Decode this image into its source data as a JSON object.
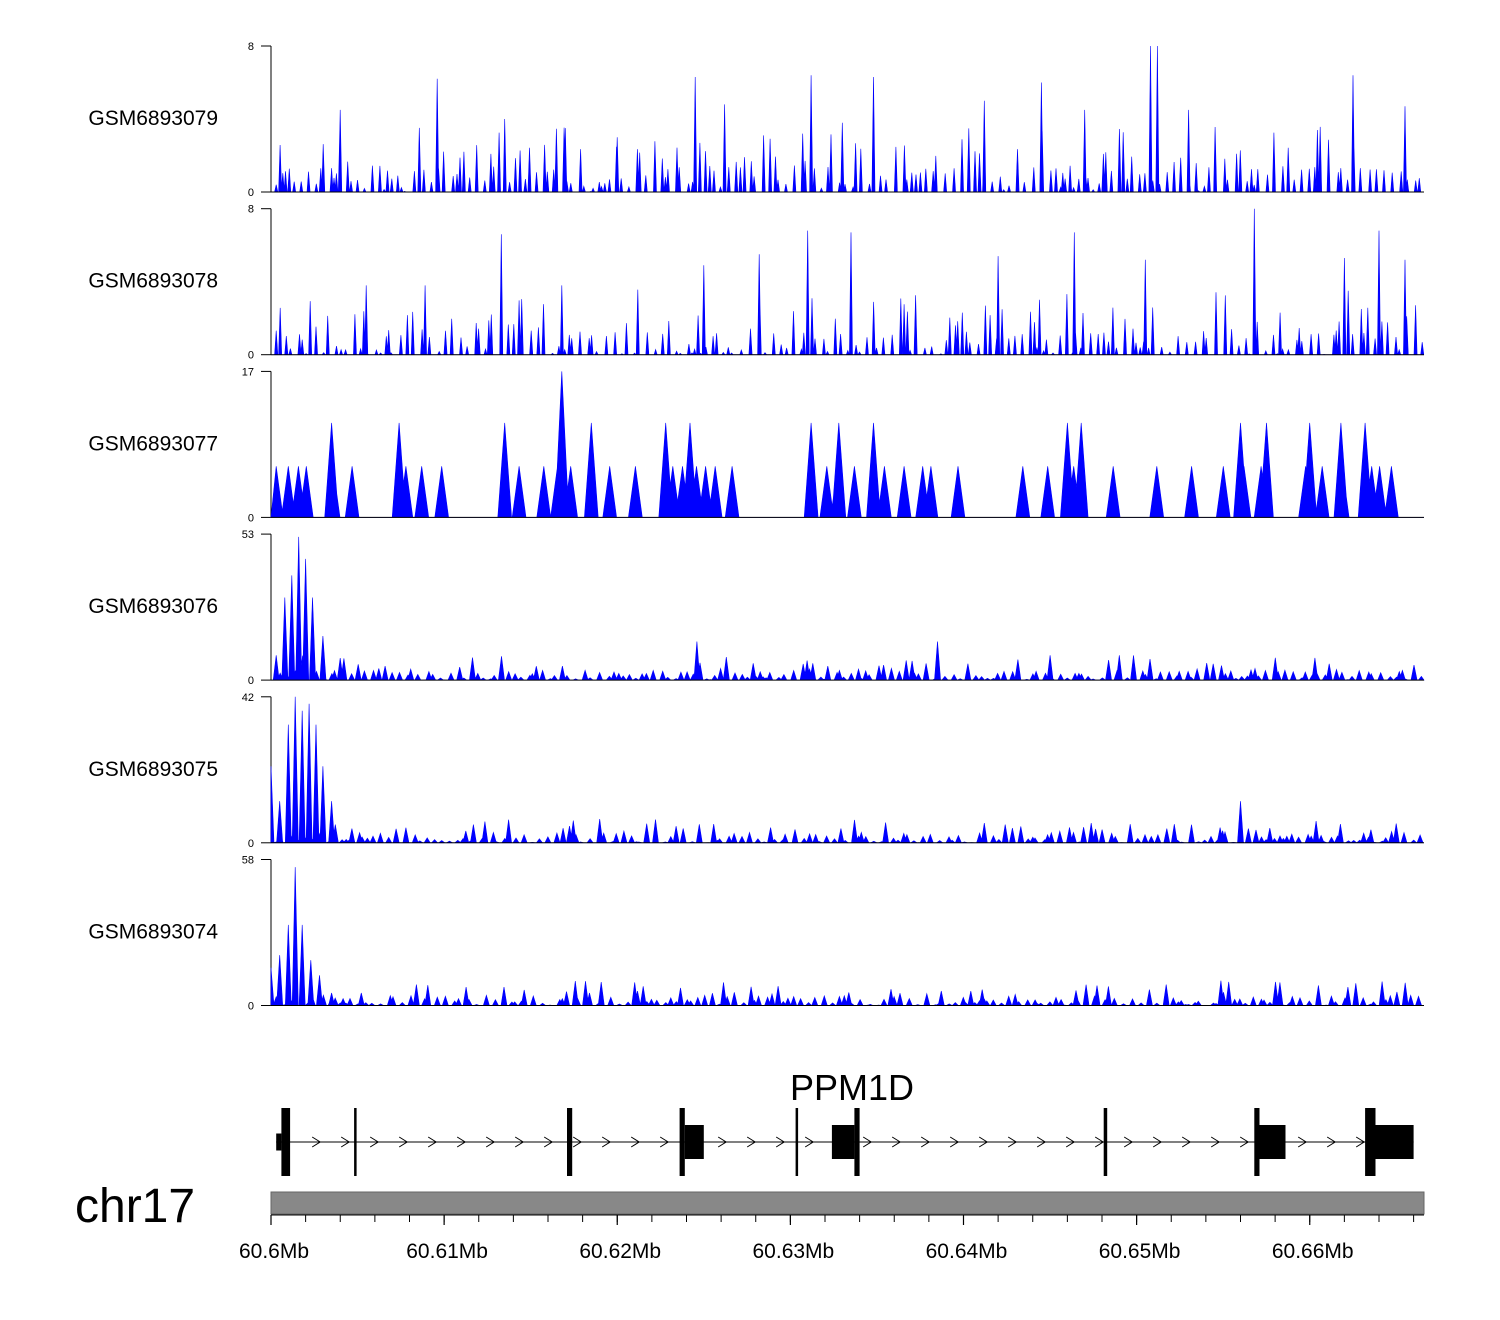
{
  "chart_data": {
    "type": "area",
    "tracks": [
      {
        "name": "GSM6893079",
        "ymax": 8,
        "ymin": 0,
        "color": "#0000ff",
        "seed": 11,
        "peaks": [
          [
            60.604,
            4.5
          ],
          [
            60.6096,
            6.2
          ],
          [
            60.6135,
            4.0
          ],
          [
            60.617,
            3.5
          ],
          [
            60.62,
            3.0
          ],
          [
            60.6245,
            6.3
          ],
          [
            60.6262,
            4.8
          ],
          [
            60.6312,
            6.4
          ],
          [
            60.633,
            3.8
          ],
          [
            60.6348,
            6.3
          ],
          [
            60.6412,
            5.0
          ],
          [
            60.6445,
            6.0
          ],
          [
            60.647,
            4.5
          ],
          [
            60.6508,
            8.0
          ],
          [
            60.6512,
            8.0
          ],
          [
            60.653,
            4.5
          ],
          [
            60.6625,
            6.4
          ],
          [
            60.6655,
            4.7
          ]
        ]
      },
      {
        "name": "GSM6893078",
        "ymax": 8,
        "ymin": 0,
        "color": "#0000ff",
        "seed": 23,
        "peaks": [
          [
            60.6055,
            3.8
          ],
          [
            60.6089,
            3.8
          ],
          [
            60.6133,
            6.6
          ],
          [
            60.6168,
            3.8
          ],
          [
            60.625,
            4.9
          ],
          [
            60.6282,
            5.5
          ],
          [
            60.631,
            6.8
          ],
          [
            60.6335,
            6.7
          ],
          [
            60.642,
            5.4
          ],
          [
            60.6464,
            6.7
          ],
          [
            60.6505,
            5.2
          ],
          [
            60.6568,
            8.0
          ],
          [
            60.662,
            5.3
          ],
          [
            60.664,
            6.8
          ],
          [
            60.6655,
            5.2
          ]
        ]
      },
      {
        "name": "GSM6893077",
        "ymax": 17,
        "ymin": 0,
        "color": "#0000ff",
        "seed": 37,
        "peaks": [
          [
            60.6035,
            11.0
          ],
          [
            60.6074,
            11.0
          ],
          [
            60.6135,
            11.0
          ],
          [
            60.6168,
            17.0
          ],
          [
            60.6185,
            11.0
          ],
          [
            60.6228,
            11.0
          ],
          [
            60.6242,
            11.0
          ],
          [
            60.6312,
            11.0
          ],
          [
            60.6328,
            11.0
          ],
          [
            60.6348,
            11.0
          ],
          [
            60.646,
            11.0
          ],
          [
            60.6468,
            11.0
          ],
          [
            60.656,
            11.0
          ],
          [
            60.6575,
            11.0
          ],
          [
            60.66,
            11.0
          ],
          [
            60.6618,
            11.0
          ],
          [
            60.6632,
            11.0
          ]
        ]
      },
      {
        "name": "GSM6893076",
        "ymax": 53,
        "ymin": 0,
        "color": "#0000ff",
        "seed": 41,
        "peaks": [
          [
            60.6008,
            30.0
          ],
          [
            60.6012,
            38.0
          ],
          [
            60.6016,
            52.0
          ],
          [
            60.602,
            44.0
          ],
          [
            60.6024,
            30.0
          ],
          [
            60.603,
            16.0
          ],
          [
            60.604,
            8.0
          ],
          [
            60.6246,
            14.0
          ],
          [
            60.6385,
            14.0
          ],
          [
            60.645,
            9.0
          ],
          [
            60.649,
            9.0
          ]
        ]
      },
      {
        "name": "GSM6893075",
        "ymax": 42,
        "ymin": 0,
        "color": "#0000ff",
        "seed": 53,
        "peaks": [
          [
            60.6,
            22.0
          ],
          [
            60.6005,
            12.0
          ],
          [
            60.601,
            34.0
          ],
          [
            60.6014,
            42.0
          ],
          [
            60.6018,
            38.0
          ],
          [
            60.6022,
            40.0
          ],
          [
            60.6026,
            34.0
          ],
          [
            60.603,
            22.0
          ],
          [
            60.6035,
            12.0
          ],
          [
            60.656,
            12.0
          ]
        ]
      },
      {
        "name": "GSM6893074",
        "ymax": 58,
        "ymin": 0,
        "color": "#0000ff",
        "seed": 67,
        "peaks": [
          [
            60.6,
            15.0
          ],
          [
            60.6005,
            20.0
          ],
          [
            60.601,
            32.0
          ],
          [
            60.6014,
            55.0
          ],
          [
            60.6018,
            32.0
          ],
          [
            60.6023,
            18.0
          ],
          [
            60.6028,
            12.0
          ],
          [
            60.6035,
            5.0
          ],
          [
            60.6465,
            6.0
          ],
          [
            60.6605,
            8.0
          ]
        ]
      }
    ],
    "gene": {
      "name": "PPM1D",
      "strand": "+",
      "start": 60.6003,
      "end": 60.666,
      "exons": [
        [
          60.6003,
          60.6006,
          "thin"
        ],
        [
          60.6006,
          60.6011,
          "thick"
        ],
        [
          60.6048,
          60.6049,
          "thick"
        ],
        [
          60.6171,
          60.6174,
          "thick"
        ],
        [
          60.6236,
          60.6239,
          "thick"
        ],
        [
          60.6239,
          60.625,
          "mid"
        ],
        [
          60.6303,
          60.6304,
          "thick"
        ],
        [
          60.6324,
          60.6337,
          "mid"
        ],
        [
          60.6337,
          60.634,
          "thick"
        ],
        [
          60.6481,
          60.6483,
          "thick"
        ],
        [
          60.6568,
          60.6571,
          "thick"
        ],
        [
          60.6571,
          60.6586,
          "mid"
        ],
        [
          60.6632,
          60.6638,
          "thick"
        ],
        [
          60.6638,
          60.666,
          "mid"
        ]
      ]
    },
    "chromosome": "chr17",
    "x_axis": {
      "min": 60.6,
      "max": 60.6666,
      "ticks": [
        "60.6Mb",
        "60.61Mb",
        "60.62Mb",
        "60.63Mb",
        "60.64Mb",
        "60.65Mb",
        "60.66Mb"
      ],
      "tick_values": [
        60.6,
        60.61,
        60.62,
        60.63,
        60.64,
        60.65,
        60.66
      ],
      "minor_step": 0.002
    }
  }
}
